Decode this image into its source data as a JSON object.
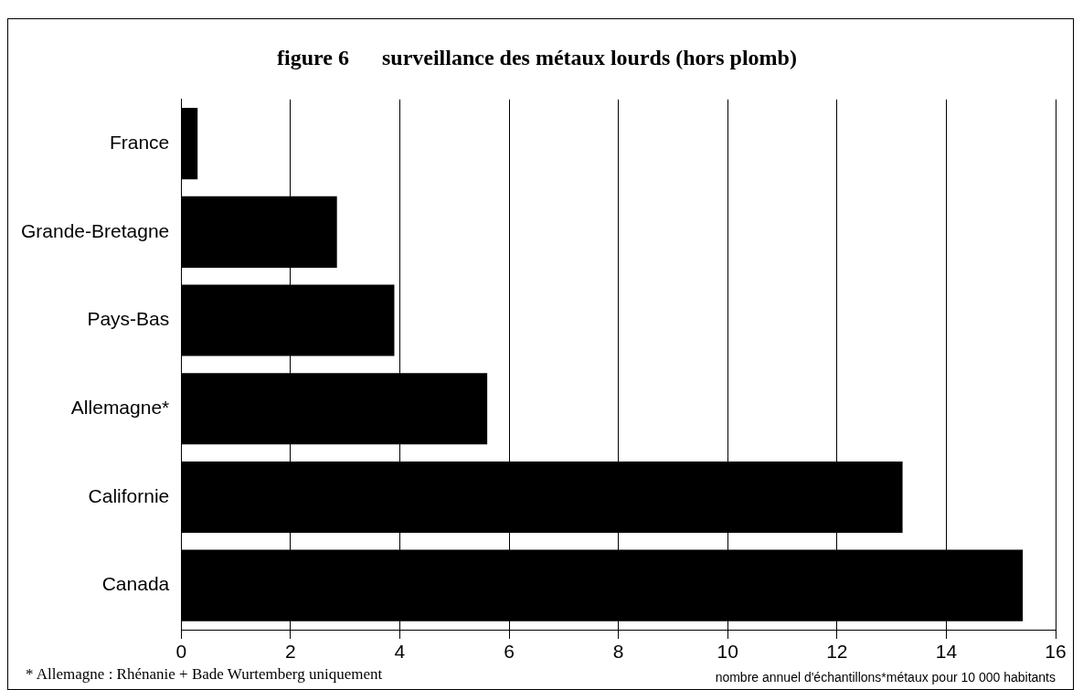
{
  "chart_data": {
    "type": "bar",
    "orientation": "horizontal",
    "title": "figure 6      surveillance des métaux lourds (hors plomb)",
    "xlabel": "nombre annuel d'échantillons*métaux pour 10 000 habitants",
    "categories": [
      "France",
      "Grande-Bretagne",
      "Pays-Bas",
      "Allemagne*",
      "Californie",
      "Canada"
    ],
    "values": [
      0.3,
      2.85,
      3.9,
      5.6,
      13.2,
      15.4
    ],
    "color": "#000000",
    "xlim": [
      0,
      16
    ],
    "xticks": [
      0,
      2,
      4,
      6,
      8,
      10,
      12,
      14,
      16
    ],
    "grid": "x",
    "legend": false,
    "annotations": [
      "* Allemagne : Rhénanie + Bade Wurtemberg uniquement"
    ]
  }
}
